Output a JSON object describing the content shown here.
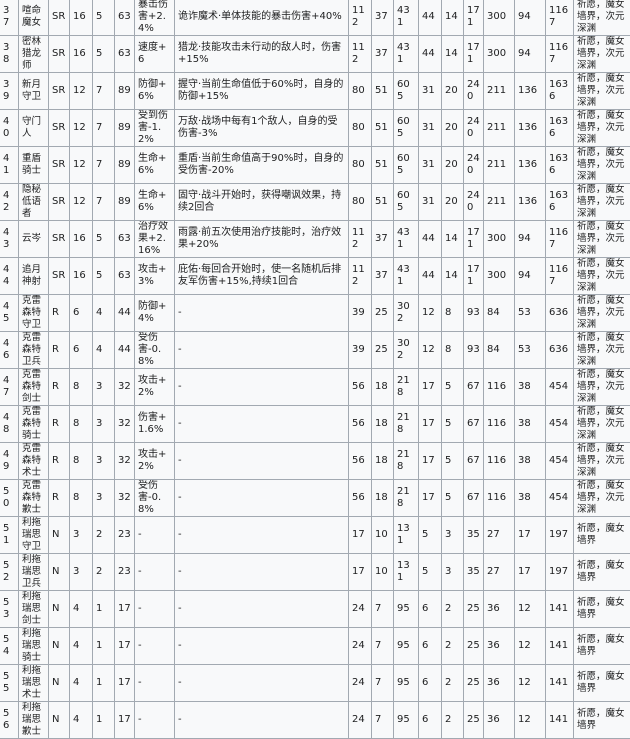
{
  "table": {
    "rows": [
      [
        "37",
        "喧命魔女",
        "SR",
        "16",
        "5",
        "63",
        "暴击伤害+2.4%",
        "诡诈魔术·单体技能的暴击伤害+40%",
        "112",
        "37",
        "431",
        "44",
        "14",
        "171",
        "300",
        "94",
        "1167",
        "祈愿，魔女墙界，次元深渊"
      ],
      [
        "38",
        "密林猎龙师",
        "SR",
        "16",
        "5",
        "63",
        "速度+6",
        "猎龙·技能攻击未行动的敌人时，伤害+15%",
        "112",
        "37",
        "431",
        "44",
        "14",
        "171",
        "300",
        "94",
        "1167",
        "祈愿，魔女墙界，次元深渊"
      ],
      [
        "39",
        "新月守卫",
        "SR",
        "12",
        "7",
        "89",
        "防御+6%",
        "握守·当前生命值低于60%时，自身的防御+15%",
        "80",
        "51",
        "605",
        "31",
        "20",
        "240",
        "211",
        "136",
        "1636",
        "祈愿，魔女墙界，次元深渊"
      ],
      [
        "40",
        "守门人",
        "SR",
        "12",
        "7",
        "89",
        "受到伤害-1.2%",
        "万敌·战场中每有1个敌人，自身的受伤害-3%",
        "80",
        "51",
        "605",
        "31",
        "20",
        "240",
        "211",
        "136",
        "1636",
        "祈愿，魔女墙界，次元深渊"
      ],
      [
        "41",
        "重盾骑士",
        "SR",
        "12",
        "7",
        "89",
        "生命+6%",
        "重盾·当前生命值高于90%时，自身的受伤害-20%",
        "80",
        "51",
        "605",
        "31",
        "20",
        "240",
        "211",
        "136",
        "1636",
        "祈愿，魔女墙界，次元深渊"
      ],
      [
        "42",
        "隐秘低语者",
        "SR",
        "12",
        "7",
        "89",
        "生命+6%",
        "固守·战斗开始时，获得嘲讽效果，持续2回合",
        "80",
        "51",
        "605",
        "31",
        "20",
        "240",
        "211",
        "136",
        "1636",
        "祈愿，魔女墙界，次元深渊"
      ],
      [
        "43",
        "云岑",
        "SR",
        "16",
        "5",
        "63",
        "治疗效果+2.16%",
        "雨露·前五次使用治疗技能时，治疗效果+20%",
        "112",
        "37",
        "431",
        "44",
        "14",
        "171",
        "300",
        "94",
        "1167",
        "祈愿，魔女墙界，次元深渊"
      ],
      [
        "44",
        "追月神射",
        "SR",
        "16",
        "5",
        "63",
        "攻击+3%",
        "庇佑·每回合开始时，使一名随机后排友军伤害+15%,持续1回合",
        "112",
        "37",
        "431",
        "44",
        "14",
        "171",
        "300",
        "94",
        "1167",
        "祈愿，魔女墙界，次元深渊"
      ],
      [
        "45",
        "克雷森特守卫",
        "R",
        "6",
        "4",
        "44",
        "防御+4%",
        "-",
        "39",
        "25",
        "302",
        "12",
        "8",
        "93",
        "84",
        "53",
        "636",
        "祈愿，魔女墙界，次元深渊"
      ],
      [
        "46",
        "克雷森特卫兵",
        "R",
        "6",
        "4",
        "44",
        "受伤害-0.8%",
        "-",
        "39",
        "25",
        "302",
        "12",
        "8",
        "93",
        "84",
        "53",
        "636",
        "祈愿，魔女墙界，次元深渊"
      ],
      [
        "47",
        "克雷森特剑士",
        "R",
        "8",
        "3",
        "32",
        "攻击+2%",
        "-",
        "56",
        "18",
        "218",
        "17",
        "5",
        "67",
        "116",
        "38",
        "454",
        "祈愿，魔女墙界，次元深渊"
      ],
      [
        "48",
        "克雷森特骑士",
        "R",
        "8",
        "3",
        "32",
        "伤害+1.6%",
        "-",
        "56",
        "18",
        "218",
        "17",
        "5",
        "67",
        "116",
        "38",
        "454",
        "祈愿，魔女墙界，次元深渊"
      ],
      [
        "49",
        "克雷森特术士",
        "R",
        "8",
        "3",
        "32",
        "攻击+2%",
        "-",
        "56",
        "18",
        "218",
        "17",
        "5",
        "67",
        "116",
        "38",
        "454",
        "祈愿，魔女墙界，次元深渊"
      ],
      [
        "50",
        "克雷森特歉士",
        "R",
        "8",
        "3",
        "32",
        "受伤害-0.8%",
        "-",
        "56",
        "18",
        "218",
        "17",
        "5",
        "67",
        "116",
        "38",
        "454",
        "祈愿，魔女墙界，次元深渊"
      ],
      [
        "51",
        "利拖瑞思守卫",
        "N",
        "3",
        "2",
        "23",
        "-",
        "-",
        "17",
        "10",
        "131",
        "5",
        "3",
        "35",
        "27",
        "17",
        "197",
        "祈愿，魔女墙界"
      ],
      [
        "52",
        "利拖瑞思卫兵",
        "N",
        "3",
        "2",
        "23",
        "-",
        "-",
        "17",
        "10",
        "131",
        "5",
        "3",
        "35",
        "27",
        "17",
        "197",
        "祈愿，魔女墙界"
      ],
      [
        "53",
        "利拖瑞思剑士",
        "N",
        "4",
        "1",
        "17",
        "-",
        "-",
        "24",
        "7",
        "95",
        "6",
        "2",
        "25",
        "36",
        "12",
        "141",
        "祈愿，魔女墙界"
      ],
      [
        "54",
        "利拖瑞思骑士",
        "N",
        "4",
        "1",
        "17",
        "-",
        "-",
        "24",
        "7",
        "95",
        "6",
        "2",
        "25",
        "36",
        "12",
        "141",
        "祈愿，魔女墙界"
      ],
      [
        "55",
        "利拖瑞思术士",
        "N",
        "4",
        "1",
        "17",
        "-",
        "-",
        "24",
        "7",
        "95",
        "6",
        "2",
        "25",
        "36",
        "12",
        "141",
        "祈愿，魔女墙界"
      ],
      [
        "56",
        "利拖瑞思歉士",
        "N",
        "4",
        "1",
        "17",
        "-",
        "-",
        "24",
        "7",
        "95",
        "6",
        "2",
        "25",
        "36",
        "12",
        "141",
        "祈愿，魔女墙界"
      ]
    ]
  }
}
